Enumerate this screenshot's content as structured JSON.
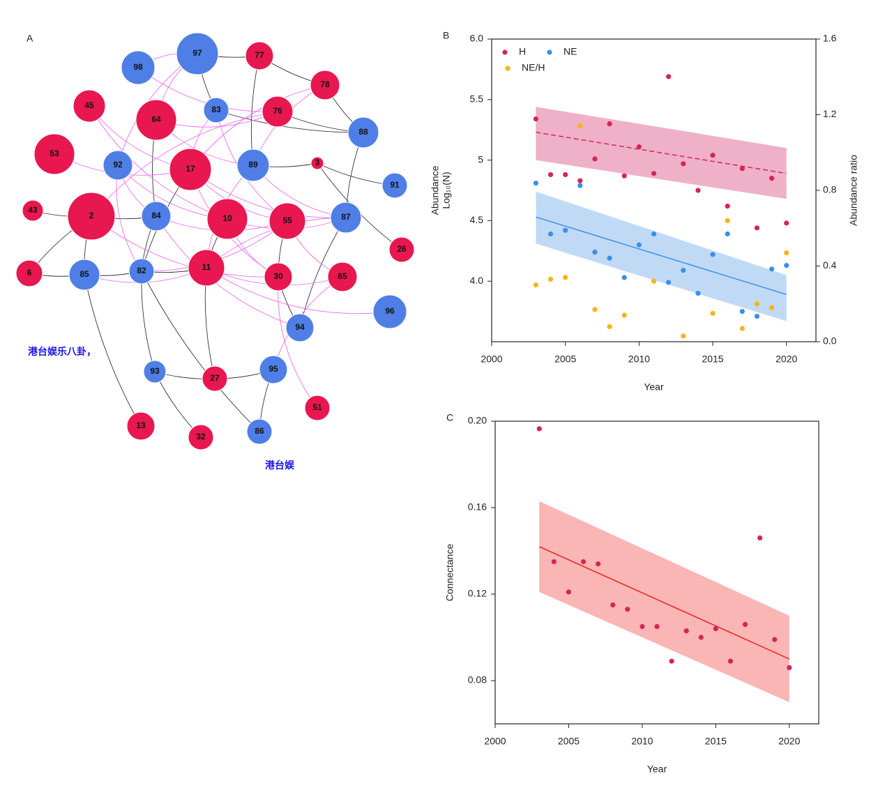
{
  "network": {
    "panel_label": "A",
    "nodes": [
      {
        "label": "97",
        "color": "#4f7fe6"
      },
      {
        "label": "77",
        "color": "#e8174f"
      },
      {
        "label": "98",
        "color": "#4f7fe6"
      },
      {
        "label": "78",
        "color": "#e8174f"
      },
      {
        "label": "45",
        "color": "#e8174f"
      },
      {
        "label": "64",
        "color": "#e8174f"
      },
      {
        "label": "83",
        "color": "#4f7fe6"
      },
      {
        "label": "76",
        "color": "#e8174f"
      },
      {
        "label": "88",
        "color": "#4f7fe6"
      },
      {
        "label": "53",
        "color": "#e8174f"
      },
      {
        "label": "92",
        "color": "#4f7fe6"
      },
      {
        "label": "17",
        "color": "#e8174f"
      },
      {
        "label": "89",
        "color": "#4f7fe6"
      },
      {
        "label": "3",
        "color": "#e8174f"
      },
      {
        "label": "91",
        "color": "#4f7fe6"
      },
      {
        "label": "43",
        "color": "#e8174f"
      },
      {
        "label": "2",
        "color": "#e8174f"
      },
      {
        "label": "84",
        "color": "#4f7fe6"
      },
      {
        "label": "10",
        "color": "#e8174f"
      },
      {
        "label": "55",
        "color": "#e8174f"
      },
      {
        "label": "87",
        "color": "#4f7fe6"
      },
      {
        "label": "26",
        "color": "#e8174f"
      },
      {
        "label": "6",
        "color": "#e8174f"
      },
      {
        "label": "85",
        "color": "#4f7fe6"
      },
      {
        "label": "82",
        "color": "#4f7fe6"
      },
      {
        "label": "11",
        "color": "#e8174f"
      },
      {
        "label": "30",
        "color": "#e8174f"
      },
      {
        "label": "65",
        "color": "#e8174f"
      },
      {
        "label": "96",
        "color": "#4f7fe6"
      },
      {
        "label": "94",
        "color": "#4f7fe6"
      },
      {
        "label": "93",
        "color": "#4f7fe6"
      },
      {
        "label": "27",
        "color": "#e8174f"
      },
      {
        "label": "95",
        "color": "#4f7fe6"
      },
      {
        "label": "51",
        "color": "#e8174f"
      },
      {
        "label": "13",
        "color": "#e8174f"
      },
      {
        "label": "32",
        "color": "#e8174f"
      },
      {
        "label": "86",
        "color": "#4f7fe6"
      }
    ]
  },
  "chart_data": [
    {
      "type": "scatter",
      "panel_label": "B",
      "xlabel": "Year",
      "ylabel": [
        "Abundance",
        "Log₁₀(N)"
      ],
      "y2label": "Abundance ratio",
      "x": [
        2003,
        2004,
        2005,
        2006,
        2007,
        2008,
        2009,
        2010,
        2011,
        2012,
        2013,
        2014,
        2015,
        2016,
        2017,
        2018,
        2019,
        2020
      ],
      "xlim": [
        2000,
        2022
      ],
      "xticks": [
        2000,
        2005,
        2010,
        2015,
        2020
      ],
      "ylim": [
        3.5,
        6.0
      ],
      "yticks": [
        {
          "value": 4.0,
          "label": "4.0"
        },
        4.5,
        5,
        5.5,
        {
          "value": 6.0,
          "label": "6.0"
        }
      ],
      "y2lim": [
        0,
        1.6
      ],
      "y2ticks": [
        {
          "value": 0,
          "label": "0.0"
        },
        0.4,
        0.8,
        1.2,
        1.6
      ],
      "series": [
        {
          "name": "H",
          "color": "#d6245a",
          "band_color": "#eca3bd",
          "values": [
            5.34,
            4.88,
            4.88,
            4.83,
            5.01,
            5.3,
            4.87,
            5.11,
            4.89,
            5.69,
            4.97,
            4.75,
            5.04,
            4.62,
            4.93,
            4.44,
            4.85,
            4.48
          ],
          "fit": {
            "x": [
              2003,
              2020
            ],
            "values": [
              5.23,
              4.89
            ],
            "band_upper": [
              5.44,
              5.1
            ],
            "band_lower": [
              5.0,
              4.68
            ],
            "dashed": true
          }
        },
        {
          "name": "NE",
          "color": "#3b8ee8",
          "band_color": "#b5d3f5",
          "values": [
            4.81,
            4.39,
            4.42,
            4.79,
            4.24,
            4.19,
            4.03,
            4.3,
            4.39,
            3.99,
            4.09,
            3.9,
            4.22,
            4.39,
            3.75,
            3.71,
            4.1,
            4.13
          ],
          "fit": {
            "x": [
              2003,
              2020
            ],
            "values": [
              4.53,
              3.89
            ],
            "band_upper": [
              4.74,
              4.05
            ],
            "band_lower": [
              4.31,
              3.67
            ],
            "dashed": false
          }
        },
        {
          "name": "NE/H",
          "color": "#f5b616",
          "axis": "y2",
          "values": [
            0.3,
            0.33,
            0.34,
            1.14,
            0.17,
            0.08,
            0.14,
            null,
            0.32,
            null,
            0.03,
            null,
            0.15,
            0.64,
            0.07,
            0.2,
            0.18,
            0.47
          ]
        }
      ]
    },
    {
      "type": "scatter",
      "panel_label": "C",
      "xlabel": "Year",
      "ylabel": [
        "Connectance"
      ],
      "x": [
        2003,
        2004,
        2005,
        2006,
        2007,
        2008,
        2009,
        2010,
        2011,
        2012,
        2013,
        2014,
        2015,
        2016,
        2017,
        2018,
        2019,
        2020
      ],
      "xlim": [
        2000,
        2022
      ],
      "xticks": [
        2000,
        2005,
        2010,
        2015,
        2020
      ],
      "ylim": [
        0.06,
        0.2
      ],
      "yticks": [
        0.08,
        0.12,
        0.16,
        {
          "value": 0.2,
          "label": "0.20"
        }
      ],
      "series": [
        {
          "color": "#d6245a",
          "band_color": "#f9a8a8",
          "line_color": "#e8211f",
          "values": [
            0.1965,
            0.135,
            0.121,
            0.135,
            0.134,
            0.115,
            0.113,
            0.105,
            0.105,
            0.089,
            0.103,
            0.1,
            0.104,
            0.089,
            0.106,
            0.146,
            0.099,
            0.086
          ],
          "fit": {
            "x": [
              2003,
              2020
            ],
            "values": [
              0.142,
              0.09
            ],
            "band_upper": [
              0.163,
              0.11
            ],
            "band_lower": [
              0.121,
              0.07
            ],
            "dashed": false
          }
        }
      ]
    }
  ],
  "overlay": {
    "lines": [
      "港台娱乐八卦，",
      "港台娱"
    ],
    "color": "#1a14ef"
  }
}
